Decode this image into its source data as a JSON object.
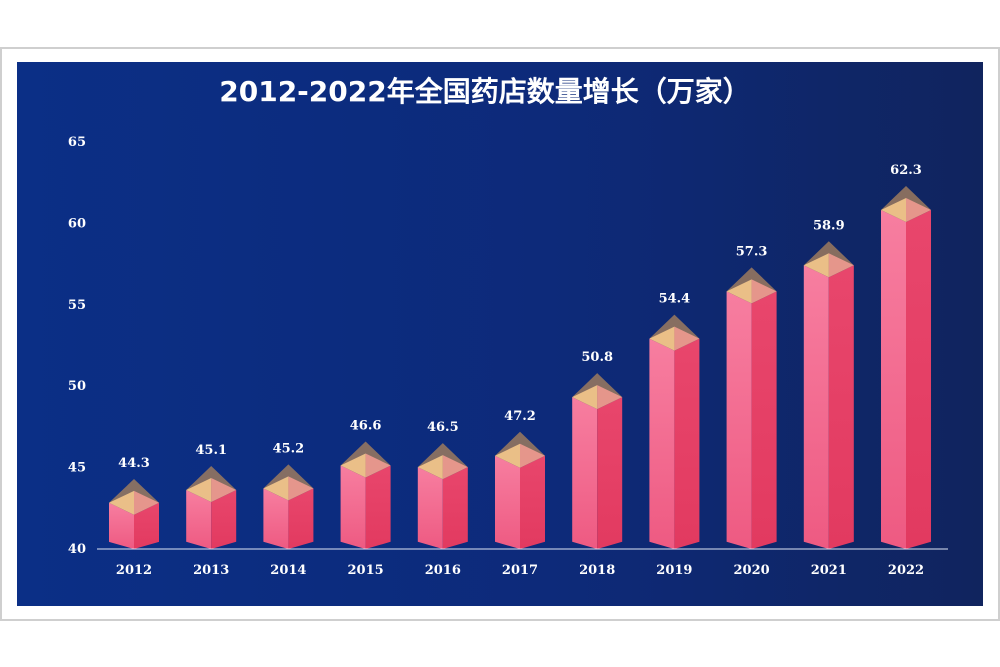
{
  "chart_data": {
    "type": "bar",
    "title": "2012-2022年全国药店数量增长（万家）",
    "categories": [
      "2012",
      "2013",
      "2014",
      "2015",
      "2016",
      "2017",
      "2018",
      "2019",
      "2020",
      "2021",
      "2022"
    ],
    "values": [
      44.3,
      45.1,
      45.2,
      46.6,
      46.5,
      47.2,
      50.8,
      54.4,
      57.3,
      58.9,
      62.3
    ],
    "ylim": [
      40,
      65
    ],
    "yticks": [
      "40",
      "45",
      "50",
      "55",
      "60",
      "65"
    ],
    "xlabel": "",
    "ylabel": "",
    "grid": false,
    "colors": {
      "bar_light": "#f5789a",
      "bar_dark": "#e83e66",
      "cap_top": "#9c7a5e",
      "cap_light": "#f5c88c",
      "cap_right": "#ef9a90"
    }
  }
}
